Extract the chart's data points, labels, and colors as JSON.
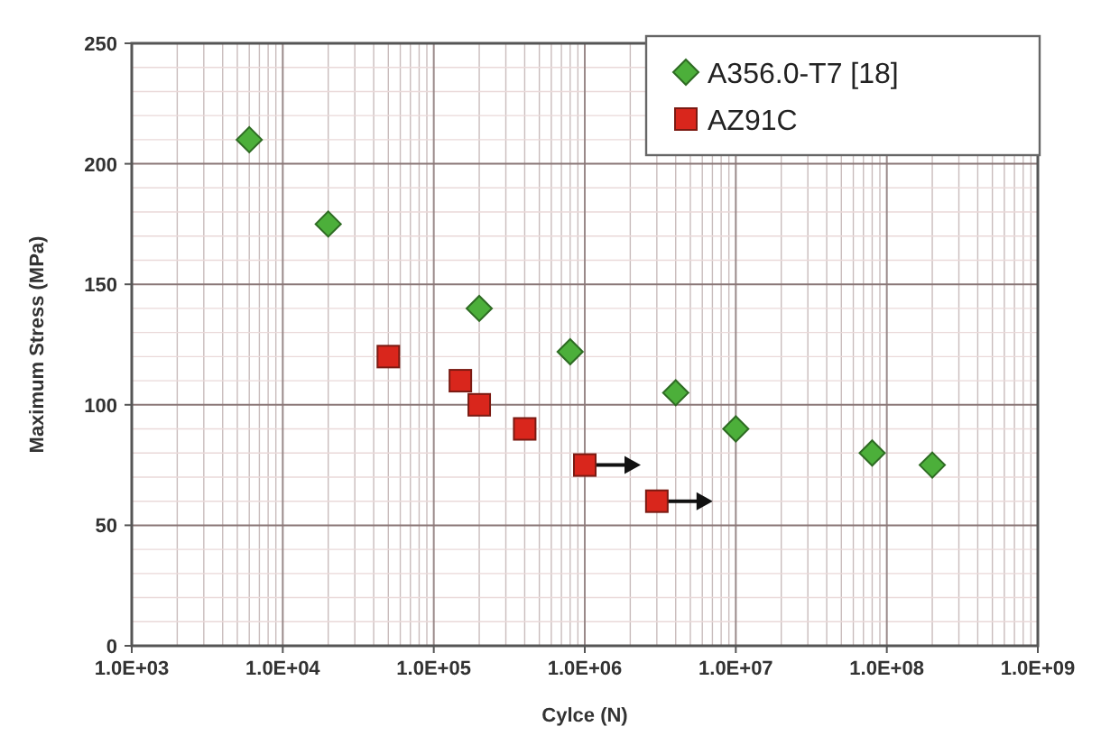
{
  "chart_data": {
    "type": "scatter",
    "xlabel": "Cylce (N)",
    "ylabel": "Maximum Stress (MPa)",
    "log": "x",
    "grid": true,
    "legend": "top right",
    "xlim": [
      1000,
      1000000000
    ],
    "xticks": [
      {
        "value": 1000,
        "label": "1.0E+03"
      },
      {
        "value": 10000,
        "label": "1.0E+04"
      },
      {
        "value": 100000,
        "label": "1.0E+05"
      },
      {
        "value": 1000000,
        "label": "1.0E+06"
      },
      {
        "value": 10000000,
        "label": "1.0E+07"
      },
      {
        "value": 100000000,
        "label": "1.0E+08"
      },
      {
        "value": 1000000000,
        "label": "1.0E+09"
      }
    ],
    "ylim": [
      0,
      250
    ],
    "yticks": [
      0,
      50,
      100,
      150,
      200,
      250
    ],
    "series": [
      {
        "name": "A356.0-T7 [18]",
        "color": "#4caf3a",
        "marker": "diamond",
        "x": [
          6000,
          20000,
          200000,
          800000,
          4000000,
          10000000,
          80000000,
          200000000
        ],
        "values": [
          210,
          175,
          140,
          122,
          105,
          90,
          80,
          75
        ]
      },
      {
        "name": "AZ91C",
        "color": "#d9261c",
        "marker": "square",
        "x": [
          50000,
          150000,
          200000,
          400000,
          1000000,
          3000000
        ],
        "values": [
          120,
          110,
          100,
          90,
          75,
          60
        ]
      }
    ]
  }
}
